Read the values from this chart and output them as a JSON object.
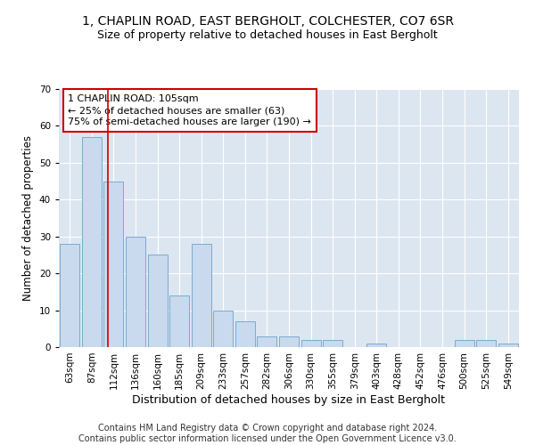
{
  "title1": "1, CHAPLIN ROAD, EAST BERGHOLT, COLCHESTER, CO7 6SR",
  "title2": "Size of property relative to detached houses in East Bergholt",
  "xlabel": "Distribution of detached houses by size in East Bergholt",
  "ylabel": "Number of detached properties",
  "categories": [
    "63sqm",
    "87sqm",
    "112sqm",
    "136sqm",
    "160sqm",
    "185sqm",
    "209sqm",
    "233sqm",
    "257sqm",
    "282sqm",
    "306sqm",
    "330sqm",
    "355sqm",
    "379sqm",
    "403sqm",
    "428sqm",
    "452sqm",
    "476sqm",
    "500sqm",
    "525sqm",
    "549sqm"
  ],
  "values": [
    28,
    57,
    45,
    30,
    25,
    14,
    28,
    10,
    7,
    3,
    3,
    2,
    2,
    0,
    1,
    0,
    0,
    0,
    2,
    2,
    1
  ],
  "bar_color": "#c9d9ee",
  "bar_edge_color": "#7aabcf",
  "vline_color": "#cc0000",
  "annotation_text": "1 CHAPLIN ROAD: 105sqm\n← 25% of detached houses are smaller (63)\n75% of semi-detached houses are larger (190) →",
  "annotation_box_color": "#ffffff",
  "annotation_edge_color": "#cc0000",
  "plot_bg_color": "#dce6f1",
  "footer_text": "Contains HM Land Registry data © Crown copyright and database right 2024.\nContains public sector information licensed under the Open Government Licence v3.0.",
  "ylim": [
    0,
    70
  ],
  "yticks": [
    0,
    10,
    20,
    30,
    40,
    50,
    60,
    70
  ],
  "title1_fontsize": 10,
  "title2_fontsize": 9,
  "xlabel_fontsize": 9,
  "ylabel_fontsize": 8.5,
  "tick_fontsize": 7.5,
  "annot_fontsize": 8,
  "footer_fontsize": 7
}
